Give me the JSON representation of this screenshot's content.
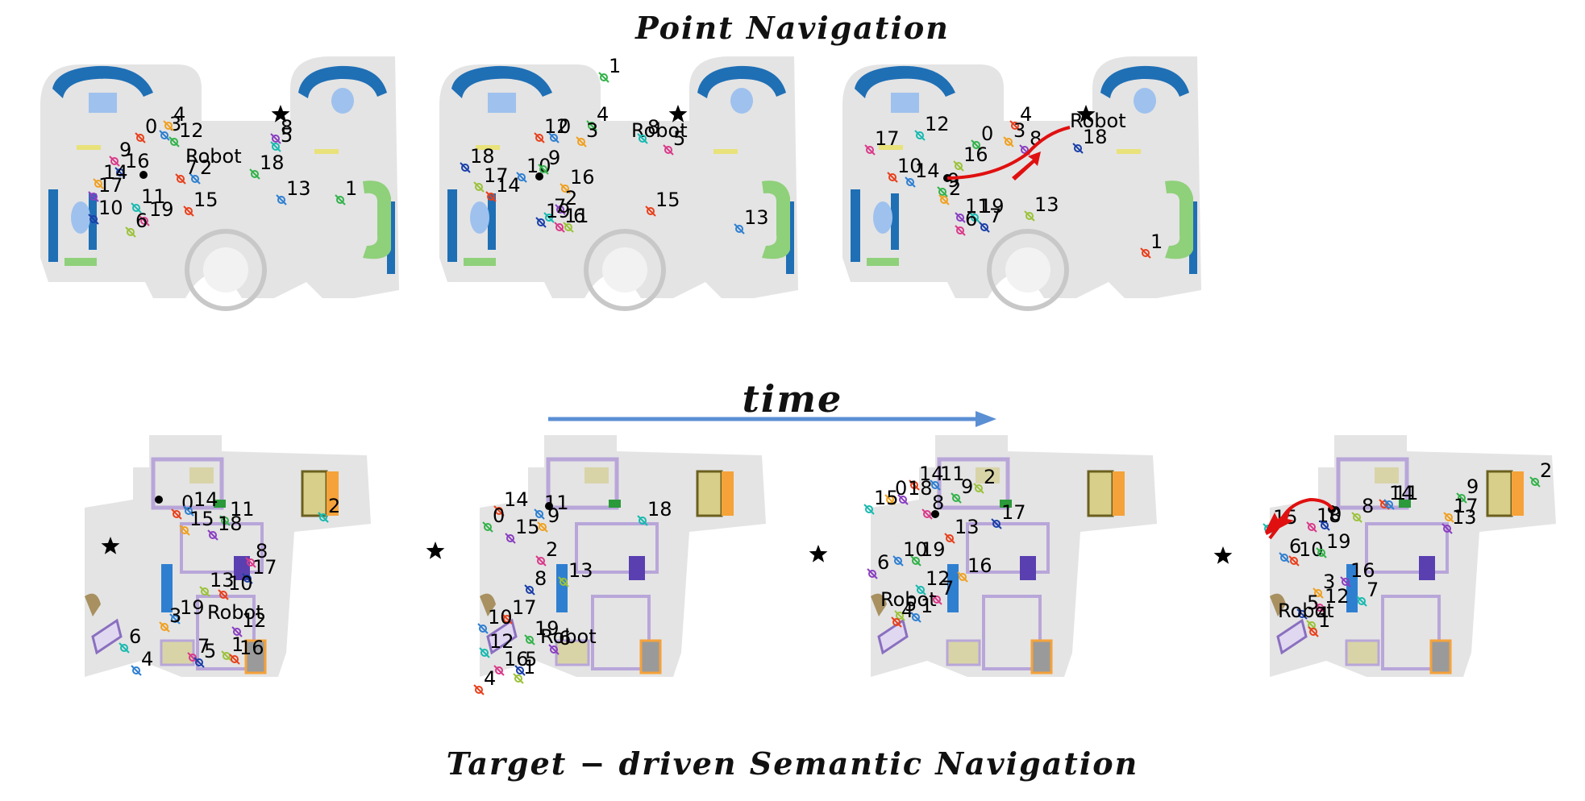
{
  "titles": {
    "top": "Point Navigation",
    "time": "time",
    "bottom": "Target − driven Semantic Navigation"
  },
  "colors": {
    "floor": "#e4e4e4",
    "furniture_blue": "#1f6fb5",
    "furniture_green": "#8fd07a",
    "furniture_purple": "#b8a6d9",
    "arrow_time": "#5b8fd4",
    "path_red": "#e01010"
  },
  "robot_label": "Robot",
  "top_panels": [
    {
      "labels": [
        "0",
        "3",
        "12",
        "4",
        "8",
        "5",
        "9",
        "16",
        "Robot",
        "7",
        "2",
        "18",
        "14",
        "17",
        "11",
        "19",
        "10",
        "6",
        "15",
        "13",
        "1"
      ],
      "goal": "star"
    },
    {
      "labels": [
        "12",
        "0",
        "4",
        "3",
        "Robot",
        "8",
        "5",
        "18",
        "17",
        "14",
        "10",
        "9",
        "16",
        "2",
        "7",
        "11",
        "19",
        "6",
        "15",
        "13",
        "1"
      ],
      "goal": "star"
    },
    {
      "labels": [
        "4",
        "Robot",
        "0",
        "3",
        "8",
        "12",
        "17",
        "18",
        "16",
        "10",
        "14",
        "9",
        "2",
        "11",
        "19",
        "6",
        "7",
        "13",
        "1"
      ],
      "goal": "star",
      "path": "red"
    }
  ],
  "bottom_panels": [
    {
      "labels": [
        "0",
        "14",
        "11",
        "15",
        "18",
        "2",
        "8",
        "17",
        "13",
        "10",
        "19",
        "Robot",
        "3",
        "12",
        "6",
        "7",
        "5",
        "1",
        "16",
        "4"
      ],
      "goal": "star"
    },
    {
      "labels": [
        "14",
        "11",
        "0",
        "9",
        "15",
        "18",
        "2",
        "8",
        "13",
        "17",
        "10",
        "19",
        "Robot",
        "6",
        "12",
        "16",
        "5",
        "1",
        "4"
      ],
      "goal": "star"
    },
    {
      "labels": [
        "14",
        "11",
        "9",
        "0",
        "18",
        "15",
        "8",
        "17",
        "2",
        "13",
        "10",
        "19",
        "16",
        "6",
        "12",
        "7",
        "Robot",
        "5",
        "4",
        "1"
      ],
      "goal": "star"
    },
    {
      "labels": [
        "14",
        "11",
        "9",
        "17",
        "13",
        "15",
        "18",
        "0",
        "8",
        "10",
        "6",
        "19",
        "3",
        "16",
        "7",
        "12",
        "5",
        "4",
        "1",
        "Robot",
        "2"
      ],
      "goal": "star",
      "path": "red"
    }
  ]
}
